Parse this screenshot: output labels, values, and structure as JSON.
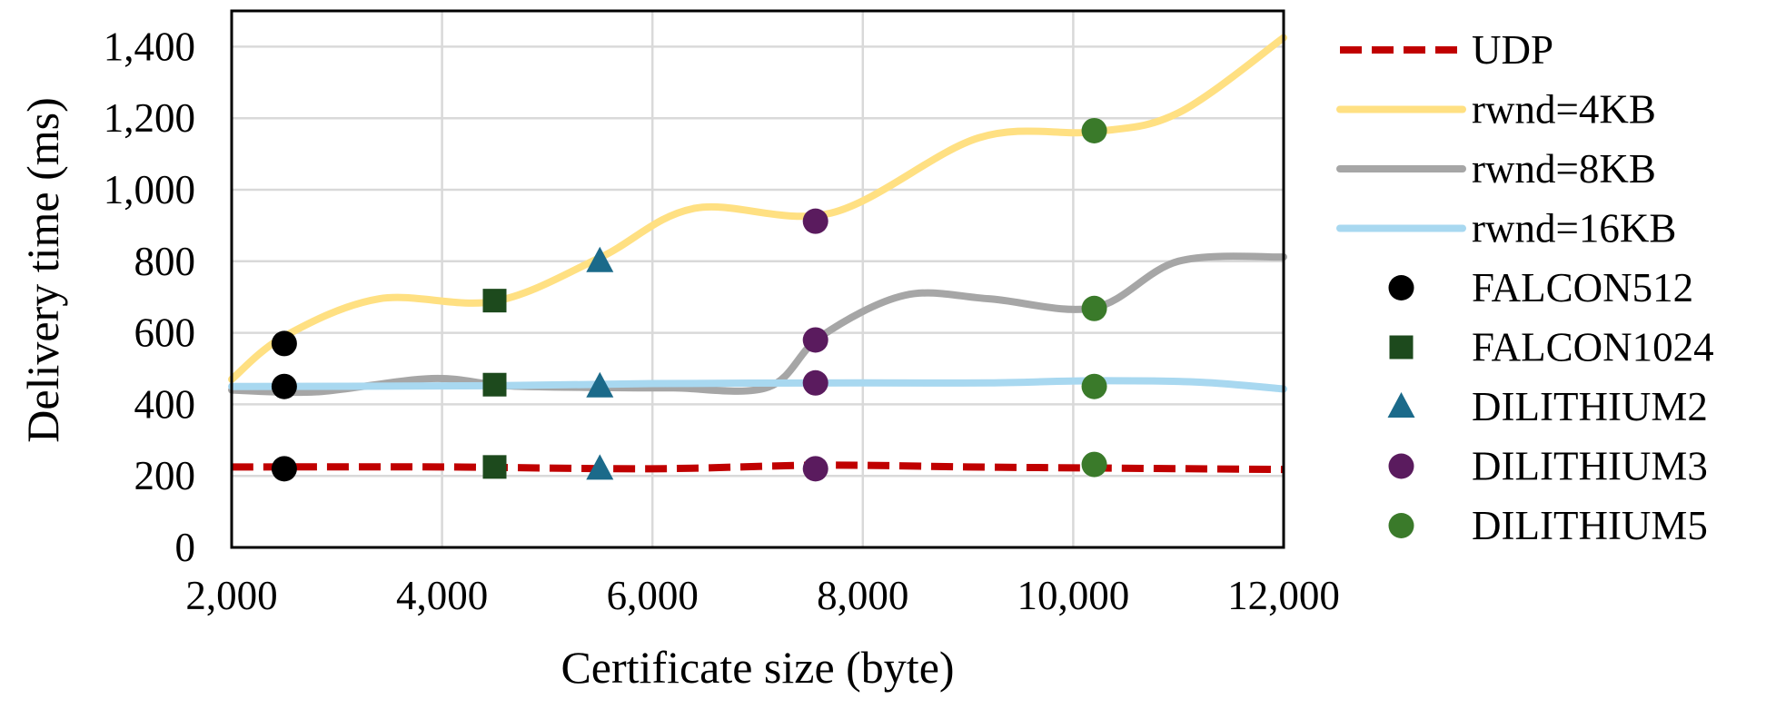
{
  "chart_data": {
    "type": "line",
    "xlabel": "Certificate size (byte)",
    "ylabel": "Delivery time (ms)",
    "xlim": [
      2000,
      12000
    ],
    "ylim": [
      0,
      1500
    ],
    "xticks": [
      2000,
      4000,
      6000,
      8000,
      10000,
      12000
    ],
    "yticks": [
      0,
      200,
      400,
      600,
      800,
      1000,
      1200,
      1400
    ],
    "xtick_labels": [
      "2,000",
      "4,000",
      "6,000",
      "8,000",
      "10,000",
      "12,000"
    ],
    "ytick_labels": [
      "0",
      "200",
      "400",
      "600",
      "800",
      "1,000",
      "1,200",
      "1,400"
    ],
    "grid": true,
    "legend_position": "right",
    "lines": [
      {
        "name": "UDP",
        "color": "#C00000",
        "dashed": true,
        "points": [
          [
            2000,
            225
          ],
          [
            4000,
            225
          ],
          [
            6000,
            220
          ],
          [
            7600,
            230
          ],
          [
            9000,
            225
          ],
          [
            10200,
            222
          ],
          [
            12000,
            218
          ]
        ]
      },
      {
        "name": "rwnd=4KB",
        "color": "#FFE082",
        "dashed": false,
        "points": [
          [
            2000,
            470
          ],
          [
            2500,
            590
          ],
          [
            3400,
            695
          ],
          [
            4500,
            688
          ],
          [
            5500,
            810
          ],
          [
            6400,
            948
          ],
          [
            7700,
            935
          ],
          [
            9100,
            1145
          ],
          [
            10200,
            1162
          ],
          [
            11000,
            1215
          ],
          [
            12000,
            1425
          ]
        ]
      },
      {
        "name": "rwnd=8KB",
        "color": "#A6A6A6",
        "dashed": false,
        "points": [
          [
            2000,
            440
          ],
          [
            2800,
            435
          ],
          [
            3900,
            472
          ],
          [
            4600,
            452
          ],
          [
            5500,
            447
          ],
          [
            6200,
            446
          ],
          [
            7100,
            448
          ],
          [
            7600,
            590
          ],
          [
            8400,
            705
          ],
          [
            9200,
            695
          ],
          [
            10200,
            670
          ],
          [
            11000,
            800
          ],
          [
            12000,
            812
          ]
        ]
      },
      {
        "name": "rwnd=16KB",
        "color": "#A8D8F0",
        "dashed": false,
        "points": [
          [
            2000,
            450
          ],
          [
            4500,
            452
          ],
          [
            6000,
            458
          ],
          [
            8000,
            460
          ],
          [
            9200,
            460
          ],
          [
            10200,
            466
          ],
          [
            11200,
            462
          ],
          [
            12000,
            443
          ]
        ]
      }
    ],
    "markers": [
      {
        "name": "FALCON512",
        "shape": "circle",
        "color": "#000000",
        "points": [
          [
            2500,
            570
          ],
          [
            2500,
            450
          ],
          [
            2500,
            220
          ]
        ]
      },
      {
        "name": "FALCON1024",
        "shape": "square",
        "color": "#1D4A1D",
        "points": [
          [
            4500,
            690
          ],
          [
            4500,
            455
          ],
          [
            4500,
            225
          ]
        ]
      },
      {
        "name": "DILITHIUM2",
        "shape": "triangle",
        "color": "#1B6A8A",
        "points": [
          [
            5500,
            800
          ],
          [
            5500,
            450
          ],
          [
            5500,
            220
          ]
        ]
      },
      {
        "name": "DILITHIUM3",
        "shape": "circle",
        "color": "#5A1B5E",
        "points": [
          [
            7550,
            912
          ],
          [
            7550,
            580
          ],
          [
            7550,
            460
          ],
          [
            7550,
            220
          ]
        ]
      },
      {
        "name": "DILITHIUM5",
        "shape": "circle",
        "color": "#3A7A2A",
        "points": [
          [
            10200,
            1165
          ],
          [
            10200,
            668
          ],
          [
            10200,
            450
          ],
          [
            10200,
            232
          ]
        ]
      }
    ]
  }
}
